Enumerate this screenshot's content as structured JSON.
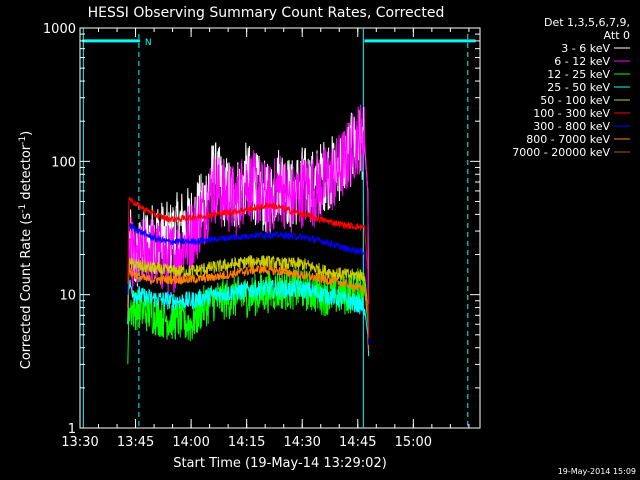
{
  "chart_data": {
    "type": "line",
    "title": "HESSI Observing Summary Count Rates, Corrected",
    "xlabel": "Start Time (19-May-14 13:29:02)",
    "ylabel_main": "Corrected Count Rate (s",
    "ylabel_sup1": "-1",
    "ylabel_mid": " detector",
    "ylabel_sup2": "-1",
    "ylabel_end": ")",
    "footer_date": "19-May-2014 15:09",
    "y_scale": "log",
    "ylim": [
      1,
      1000
    ],
    "xlim_minutes": [
      13.5,
      15.3
    ],
    "x_ticks": [
      {
        "t": 13.5,
        "label": "13:30"
      },
      {
        "t": 13.75,
        "label": "13:45"
      },
      {
        "t": 14.0,
        "label": "14:00"
      },
      {
        "t": 14.25,
        "label": "14:15"
      },
      {
        "t": 14.5,
        "label": "14:30"
      },
      {
        "t": 14.75,
        "label": "14:45"
      },
      {
        "t": 15.0,
        "label": "15:00"
      }
    ],
    "y_ticks": [
      {
        "v": 1,
        "label": "1"
      },
      {
        "v": 10,
        "label": "10"
      },
      {
        "v": 100,
        "label": "100"
      },
      {
        "v": 1000,
        "label": "1000"
      }
    ],
    "legend_header": [
      "Det 1,3,5,6,7,9,",
      "Att 0"
    ],
    "legend_position": "right",
    "night_marker_label": "N",
    "series": [
      {
        "name": "3 - 6 keV",
        "color": "#ffffff",
        "noise": 0.28,
        "points": [
          [
            13.715,
            6
          ],
          [
            13.72,
            25
          ],
          [
            13.75,
            18
          ],
          [
            13.8,
            25
          ],
          [
            13.85,
            28
          ],
          [
            13.9,
            26
          ],
          [
            13.95,
            33
          ],
          [
            14.0,
            35
          ],
          [
            14.05,
            45
          ],
          [
            14.1,
            80
          ],
          [
            14.15,
            60
          ],
          [
            14.2,
            55
          ],
          [
            14.25,
            75
          ],
          [
            14.3,
            60
          ],
          [
            14.35,
            50
          ],
          [
            14.4,
            75
          ],
          [
            14.45,
            55
          ],
          [
            14.5,
            70
          ],
          [
            14.55,
            65
          ],
          [
            14.6,
            80
          ],
          [
            14.65,
            85
          ],
          [
            14.7,
            110
          ],
          [
            14.75,
            140
          ],
          [
            14.78,
            135
          ],
          [
            14.795,
            60
          ],
          [
            14.8,
            4
          ]
        ]
      },
      {
        "name": "6 - 12 keV",
        "color": "#ff00ff",
        "noise": 0.28,
        "points": [
          [
            13.715,
            10
          ],
          [
            13.72,
            22
          ],
          [
            13.75,
            17
          ],
          [
            13.8,
            22
          ],
          [
            13.85,
            20
          ],
          [
            13.9,
            18
          ],
          [
            13.95,
            22
          ],
          [
            14.0,
            28
          ],
          [
            14.05,
            40
          ],
          [
            14.1,
            65
          ],
          [
            14.15,
            55
          ],
          [
            14.2,
            50
          ],
          [
            14.25,
            70
          ],
          [
            14.3,
            60
          ],
          [
            14.35,
            50
          ],
          [
            14.4,
            65
          ],
          [
            14.45,
            50
          ],
          [
            14.5,
            60
          ],
          [
            14.55,
            60
          ],
          [
            14.6,
            70
          ],
          [
            14.65,
            80
          ],
          [
            14.7,
            105
          ],
          [
            14.75,
            150
          ],
          [
            14.78,
            150
          ],
          [
            14.795,
            60
          ],
          [
            14.8,
            4
          ]
        ]
      },
      {
        "name": "12 - 25 keV",
        "color": "#00ff00",
        "noise": 0.16,
        "points": [
          [
            13.715,
            3
          ],
          [
            13.72,
            8
          ],
          [
            13.8,
            7.5
          ],
          [
            13.85,
            7
          ],
          [
            13.9,
            6.5
          ],
          [
            13.95,
            6.5
          ],
          [
            14.0,
            6
          ],
          [
            14.05,
            8
          ],
          [
            14.1,
            9
          ],
          [
            14.2,
            9.5
          ],
          [
            14.3,
            10
          ],
          [
            14.4,
            11
          ],
          [
            14.5,
            11
          ],
          [
            14.6,
            10
          ],
          [
            14.7,
            10
          ],
          [
            14.75,
            11
          ],
          [
            14.78,
            12
          ],
          [
            14.795,
            6
          ],
          [
            14.8,
            3
          ]
        ]
      },
      {
        "name": "25 - 50 keV",
        "color": "#00ffff",
        "noise": 0.07,
        "points": [
          [
            13.715,
            6
          ],
          [
            13.72,
            12
          ],
          [
            13.75,
            10
          ],
          [
            13.8,
            9.5
          ],
          [
            13.9,
            9
          ],
          [
            14.0,
            9
          ],
          [
            14.1,
            10
          ],
          [
            14.2,
            10.5
          ],
          [
            14.3,
            11
          ],
          [
            14.4,
            11
          ],
          [
            14.5,
            11
          ],
          [
            14.6,
            10
          ],
          [
            14.7,
            9
          ],
          [
            14.75,
            8.5
          ],
          [
            14.78,
            8
          ],
          [
            14.795,
            5
          ],
          [
            14.8,
            3
          ]
        ]
      },
      {
        "name": "50 - 100 keV",
        "color": "#cccc00",
        "noise": 0.05,
        "points": [
          [
            13.715,
            8
          ],
          [
            13.72,
            17
          ],
          [
            13.8,
            16
          ],
          [
            13.9,
            15
          ],
          [
            14.0,
            15
          ],
          [
            14.1,
            16
          ],
          [
            14.2,
            17
          ],
          [
            14.3,
            18
          ],
          [
            14.4,
            17
          ],
          [
            14.5,
            17
          ],
          [
            14.6,
            15
          ],
          [
            14.7,
            14
          ],
          [
            14.78,
            14
          ],
          [
            14.795,
            8
          ],
          [
            14.8,
            3
          ]
        ]
      },
      {
        "name": "100 - 300 keV",
        "color": "#ff0000",
        "noise": 0.025,
        "points": [
          [
            13.715,
            12
          ],
          [
            13.72,
            53
          ],
          [
            13.75,
            48
          ],
          [
            13.8,
            43
          ],
          [
            13.85,
            39
          ],
          [
            13.9,
            37
          ],
          [
            13.95,
            37
          ],
          [
            14.0,
            38
          ],
          [
            14.1,
            40
          ],
          [
            14.2,
            42
          ],
          [
            14.3,
            45
          ],
          [
            14.35,
            47
          ],
          [
            14.4,
            45
          ],
          [
            14.5,
            40
          ],
          [
            14.6,
            36
          ],
          [
            14.7,
            33
          ],
          [
            14.78,
            32
          ],
          [
            14.795,
            15
          ],
          [
            14.8,
            3
          ]
        ]
      },
      {
        "name": "300 - 800 keV",
        "color": "#0000ff",
        "noise": 0.025,
        "points": [
          [
            13.715,
            10
          ],
          [
            13.72,
            33
          ],
          [
            13.75,
            31
          ],
          [
            13.8,
            28
          ],
          [
            13.85,
            26
          ],
          [
            13.9,
            25
          ],
          [
            13.95,
            25
          ],
          [
            14.0,
            25
          ],
          [
            14.1,
            26
          ],
          [
            14.2,
            27
          ],
          [
            14.3,
            28
          ],
          [
            14.4,
            28
          ],
          [
            14.5,
            27
          ],
          [
            14.6,
            25
          ],
          [
            14.7,
            22
          ],
          [
            14.78,
            21
          ],
          [
            14.795,
            10
          ],
          [
            14.8,
            3
          ]
        ]
      },
      {
        "name": "800 - 7000 keV",
        "color": "#ff7f00",
        "noise": 0.035,
        "points": [
          [
            13.715,
            7
          ],
          [
            13.72,
            15
          ],
          [
            13.75,
            14
          ],
          [
            13.8,
            13
          ],
          [
            13.9,
            13
          ],
          [
            14.0,
            13
          ],
          [
            14.1,
            13.5
          ],
          [
            14.2,
            14.5
          ],
          [
            14.3,
            15.5
          ],
          [
            14.4,
            15
          ],
          [
            14.5,
            14
          ],
          [
            14.6,
            13
          ],
          [
            14.7,
            12
          ],
          [
            14.78,
            11
          ],
          [
            14.795,
            7
          ],
          [
            14.8,
            3
          ]
        ]
      },
      {
        "name": "7000 - 20000 keV",
        "color": "#996600",
        "noise": 0.0,
        "points": []
      }
    ],
    "att_bar_segments": [
      [
        13.51,
        13.77
      ],
      [
        14.78,
        15.28
      ]
    ],
    "att_bar_level": 800,
    "night_boundaries": [
      13.765,
      15.245
    ],
    "cyan_solid_verticals": [
      13.515,
      14.775
    ]
  }
}
